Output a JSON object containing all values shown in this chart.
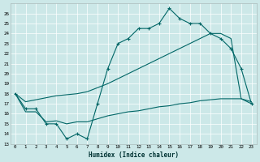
{
  "xlabel": "Humidex (Indice chaleur)",
  "background_color": "#cce8e8",
  "line_color": "#006666",
  "xlim": [
    -0.5,
    23.5
  ],
  "ylim": [
    13,
    27
  ],
  "yticks": [
    13,
    14,
    15,
    16,
    17,
    18,
    19,
    20,
    21,
    22,
    23,
    24,
    25,
    26
  ],
  "xticks": [
    0,
    1,
    2,
    3,
    4,
    5,
    6,
    7,
    8,
    9,
    10,
    11,
    12,
    13,
    14,
    15,
    16,
    17,
    18,
    19,
    20,
    21,
    22,
    23
  ],
  "line1_x": [
    0,
    1,
    2,
    3,
    4,
    5,
    6,
    7,
    8,
    9,
    10,
    11,
    12,
    13,
    14,
    15,
    16,
    17,
    18,
    19,
    20,
    21,
    22,
    23
  ],
  "line1_y": [
    18,
    16.5,
    16.5,
    15,
    15,
    13.5,
    14,
    13.5,
    17,
    20.5,
    23,
    23.5,
    24.5,
    24.5,
    25,
    26.5,
    25.5,
    25,
    25,
    24,
    23.5,
    22.5,
    20.5,
    17
  ],
  "line2_x": [
    0,
    1,
    2,
    3,
    4,
    5,
    6,
    7,
    8,
    9,
    10,
    11,
    12,
    13,
    14,
    15,
    16,
    17,
    18,
    19,
    20,
    21,
    22,
    23
  ],
  "line2_y": [
    18,
    17.2,
    17.4,
    17.6,
    17.8,
    17.9,
    18.0,
    18.2,
    18.6,
    19.0,
    19.5,
    20.0,
    20.5,
    21.0,
    21.5,
    22.0,
    22.5,
    23.0,
    23.5,
    24.0,
    24.0,
    23.5,
    17.5,
    17.0
  ],
  "line3_x": [
    0,
    1,
    2,
    3,
    4,
    5,
    6,
    7,
    8,
    9,
    10,
    11,
    12,
    13,
    14,
    15,
    16,
    17,
    18,
    19,
    20,
    21,
    22,
    23
  ],
  "line3_y": [
    18,
    16.2,
    16.2,
    15.2,
    15.3,
    15.0,
    15.2,
    15.2,
    15.5,
    15.8,
    16.0,
    16.2,
    16.3,
    16.5,
    16.7,
    16.8,
    17.0,
    17.1,
    17.3,
    17.4,
    17.5,
    17.5,
    17.5,
    17.2
  ]
}
